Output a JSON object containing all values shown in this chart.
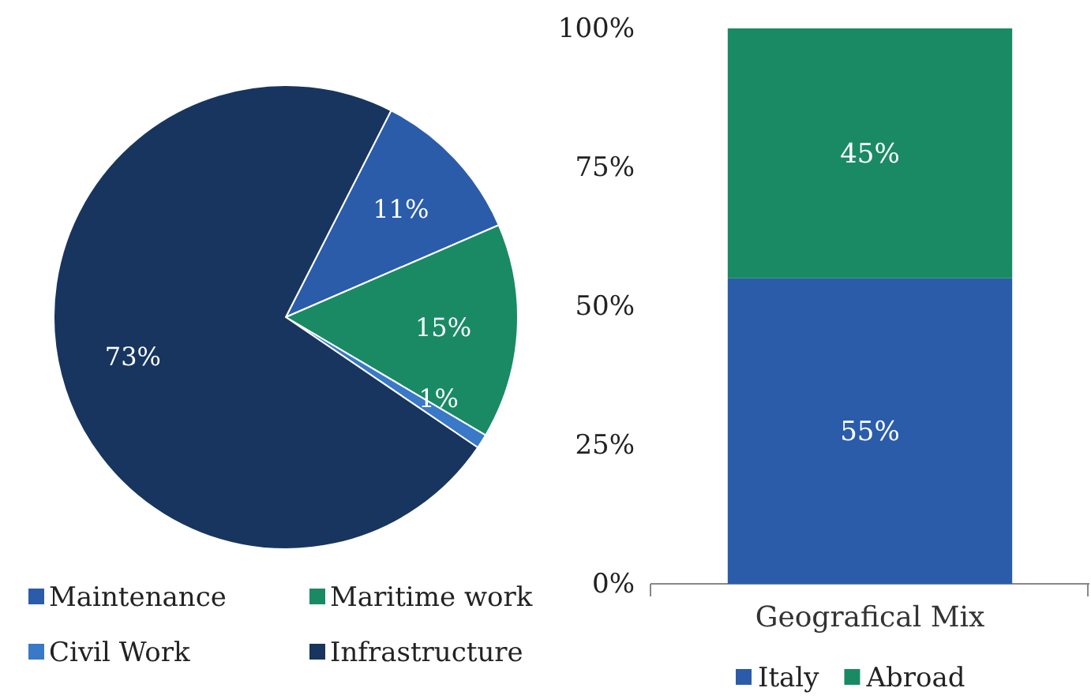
{
  "chart_data": [
    {
      "type": "pie",
      "categories": [
        "Maintenance",
        "Maritime work",
        "Civil Work",
        "Infrastructure"
      ],
      "values": [
        11,
        15,
        1,
        73
      ],
      "colors": [
        "#2a5caa",
        "#1a8a64",
        "#3a78c8",
        "#17355f"
      ],
      "value_labels": [
        "11%",
        "15%",
        "1%",
        "73%"
      ],
      "legend": "bottom"
    },
    {
      "type": "bar",
      "stacked": true,
      "categories": [
        "Geografical Mix"
      ],
      "series": [
        {
          "name": "Italy",
          "color": "#2a5caa",
          "values": [
            55
          ],
          "value_labels": [
            "55%"
          ]
        },
        {
          "name": "Abroad",
          "color": "#1a8a64",
          "values": [
            45
          ],
          "value_labels": [
            "45%"
          ]
        }
      ],
      "ylim": [
        0,
        100
      ],
      "yticks": [
        {
          "value": 0,
          "label": "0%"
        },
        {
          "value": 25,
          "label": "25%"
        },
        {
          "value": 50,
          "label": "50%"
        },
        {
          "value": 75,
          "label": "75%"
        },
        {
          "value": 100,
          "label": "100%"
        }
      ],
      "grid": false,
      "legend": "bottom"
    }
  ]
}
